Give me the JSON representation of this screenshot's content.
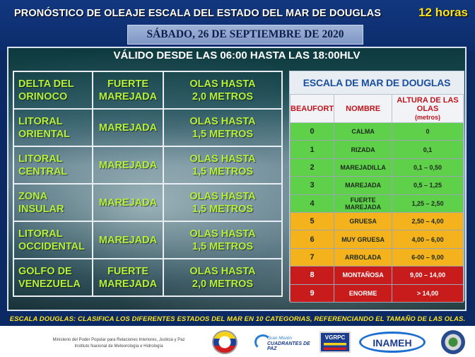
{
  "header": {
    "title": "PRONÓSTICO DE OLEAJE ESCALA DEL ESTADO DEL MAR DE DOUGLAS",
    "hours": "12 horas",
    "date": "SÁBADO, 26 DE  SEPTIEMBRE DE 2020"
  },
  "validity": "VÁLIDO DESDE LAS 06:00 HASTA LAS 18:00HLV",
  "forecast": [
    {
      "zone_line1": "DELTA DEL",
      "zone_line2": "ORINOCO",
      "state_line1": "FUERTE",
      "state_line2": "MAREJADA",
      "waves_line1": "OLAS HASTA",
      "waves_line2": "2,0 METROS"
    },
    {
      "zone_line1": "LITORAL",
      "zone_line2": "ORIENTAL",
      "state_line1": "MAREJADA",
      "state_line2": "",
      "waves_line1": "OLAS HASTA",
      "waves_line2": "1,5 METROS"
    },
    {
      "zone_line1": "LITORAL",
      "zone_line2": "CENTRAL",
      "state_line1": "MAREJADA",
      "state_line2": "",
      "waves_line1": "OLAS HASTA",
      "waves_line2": "1,5 METROS"
    },
    {
      "zone_line1": "ZONA",
      "zone_line2": "INSULAR",
      "state_line1": "MAREJADA",
      "state_line2": "",
      "waves_line1": "OLAS HASTA",
      "waves_line2": "1,5 METROS"
    },
    {
      "zone_line1": "LITORAL",
      "zone_line2": "OCCIDENTAL",
      "state_line1": "MAREJADA",
      "state_line2": "",
      "waves_line1": "OLAS HASTA",
      "waves_line2": "1,5 METROS"
    },
    {
      "zone_line1": "GOLFO DE",
      "zone_line2": "VENEZUELA",
      "state_line1": "FUERTE",
      "state_line2": "MAREJADA",
      "waves_line1": "OLAS HASTA",
      "waves_line2": "2,0 METROS"
    }
  ],
  "scale": {
    "title": "ESCALA  DE MAR DE DOUGLAS",
    "col_beaufort": "BEAUFORT",
    "col_name": "NOMBRE",
    "col_height": "ALTURA DE LAS OLAS",
    "col_height_unit": "(metros)",
    "rows": [
      {
        "level": "0",
        "name": "CALMA",
        "height": "0",
        "color": "#5fd04a"
      },
      {
        "level": "1",
        "name": "RIZADA",
        "height": "0,1",
        "color": "#5fd04a"
      },
      {
        "level": "2",
        "name": "MAREJADILLA",
        "height": "0,1 – 0,50",
        "color": "#5fd04a"
      },
      {
        "level": "3",
        "name": "MAREJADA",
        "height": "0,5 – 1,25",
        "color": "#5fd04a"
      },
      {
        "level": "4",
        "name": "FUERTE MAREJADA",
        "height": "1,25 – 2,50",
        "color": "#5fd04a"
      },
      {
        "level": "5",
        "name": "GRUESA",
        "height": "2,50 – 4,00",
        "color": "#f4b21c"
      },
      {
        "level": "6",
        "name": "MUY GRUESA",
        "height": "4,00 – 6,00",
        "color": "#f4b21c"
      },
      {
        "level": "7",
        "name": "ARBOLADA",
        "height": "6-00 – 9,00",
        "color": "#f4b21c"
      },
      {
        "level": "8",
        "name": "MONTAÑOSA",
        "height": "9,00 – 14,00",
        "color": "#c81c1c"
      },
      {
        "level": "9",
        "name": "ENORME",
        "height": "> 14,00",
        "color": "#c81c1c"
      }
    ]
  },
  "footnote": "ESCALA DOUGLAS:  CLASIFICA  LOS DIFERENTES  ESTADOS  DEL  MAR EN 10 CATEGORIAS,  REFERENCIANDO  EL TAMAÑO DE LAS OLAS.",
  "footer": {
    "ministry_line1": "Ministerio del Poder Popular para Relaciones Interiores, Justicia y Paz",
    "ministry_line2": "Instituto  Nacional de Meteorología e Hidrología",
    "logo_gm_line1": "Gran Misión",
    "logo_gm_line2": "CUADRANTES DE PAZ",
    "logo_vgrpc": "VGRPC",
    "logo_inameh": "INAMEH"
  }
}
